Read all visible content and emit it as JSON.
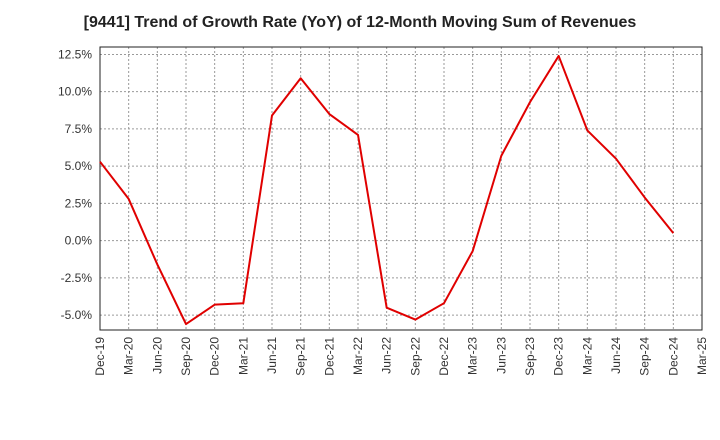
{
  "chart_data": {
    "type": "line",
    "title": "[9441]  Trend of Growth Rate (YoY) of 12-Month Moving Sum of Revenues",
    "xlabel": "",
    "ylabel": "",
    "x_ticks": [
      "Dec-19",
      "Mar-20",
      "Jun-20",
      "Sep-20",
      "Dec-20",
      "Mar-21",
      "Jun-21",
      "Sep-21",
      "Dec-21",
      "Mar-22",
      "Jun-22",
      "Sep-22",
      "Dec-22",
      "Mar-23",
      "Jun-23",
      "Sep-23",
      "Dec-23",
      "Mar-24",
      "Jun-24",
      "Sep-24",
      "Dec-24",
      "Mar-25"
    ],
    "y_ticks": [
      "12.5%",
      "10.0%",
      "7.5%",
      "5.0%",
      "2.5%",
      "0.0%",
      "-2.5%",
      "-5.0%"
    ],
    "ylim": [
      -6.0,
      13.0
    ],
    "grid": true,
    "series": [
      {
        "color": "#e00000",
        "x": [
          "Dec-19",
          "Mar-20",
          "Jun-20",
          "Sep-20",
          "Dec-20",
          "Mar-21",
          "Jun-21",
          "Sep-21",
          "Dec-21",
          "Mar-22",
          "Jun-22",
          "Sep-22",
          "Dec-22",
          "Mar-23",
          "Jun-23",
          "Sep-23",
          "Dec-23",
          "Mar-24",
          "Jun-24",
          "Sep-24",
          "Dec-24"
        ],
        "values": [
          5.3,
          2.8,
          -1.6,
          -5.6,
          -4.3,
          -4.2,
          8.4,
          10.9,
          8.5,
          7.1,
          -4.5,
          -5.3,
          -4.2,
          -0.7,
          5.7,
          9.3,
          12.4,
          7.4,
          5.5,
          2.9,
          0.5
        ]
      }
    ]
  }
}
